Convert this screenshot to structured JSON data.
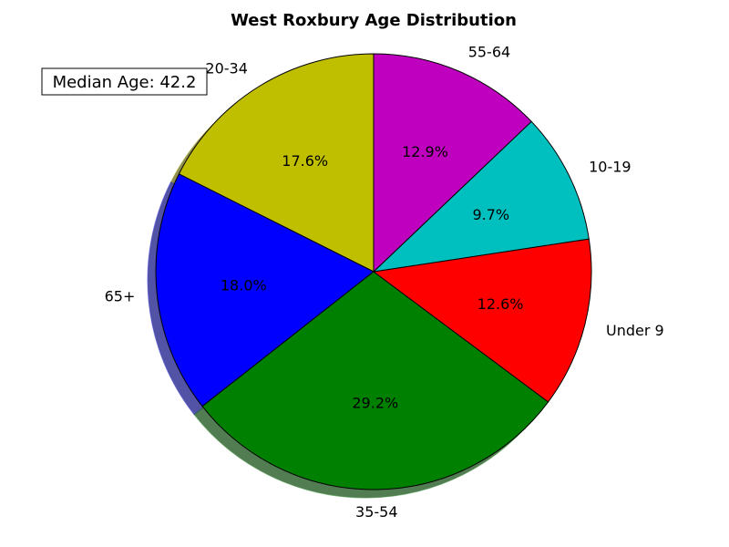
{
  "chart_data": {
    "type": "pie",
    "title": "West Roxbury Age Distribution",
    "annotation": "Median Age: 42.2",
    "shadow": true,
    "start_angle_deg": 90,
    "direction": "counterclockwise",
    "slices": [
      {
        "label": "20-34",
        "value": 17.6,
        "pct_label": "17.6%",
        "color": "#bfbf00"
      },
      {
        "label": "65+",
        "value": 18.0,
        "pct_label": "18.0%",
        "color": "#0000ff"
      },
      {
        "label": "35-54",
        "value": 29.2,
        "pct_label": "29.2%",
        "color": "#008000"
      },
      {
        "label": "Under 9",
        "value": 12.6,
        "pct_label": "12.6%",
        "color": "#ff0000"
      },
      {
        "label": "10-19",
        "value": 9.7,
        "pct_label": "9.7%",
        "color": "#00bfbf"
      },
      {
        "label": "55-64",
        "value": 12.9,
        "pct_label": "12.9%",
        "color": "#bf00bf"
      }
    ]
  }
}
